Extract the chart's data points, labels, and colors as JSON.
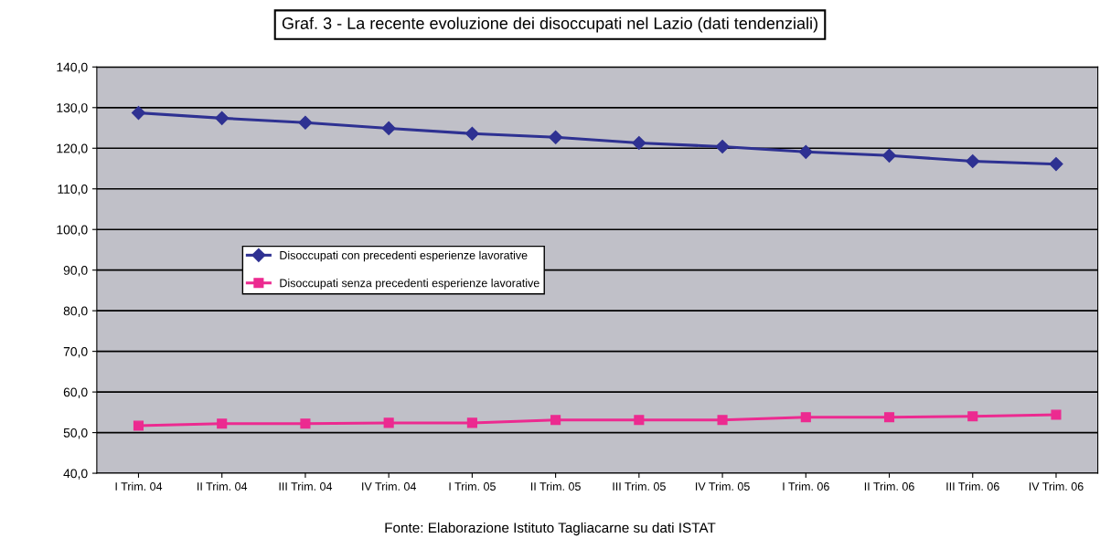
{
  "chart_data": {
    "type": "line",
    "title": "Graf. 3 - La recente evoluzione dei disoccupati nel Lazio (dati tendenziali)",
    "annotations": [
      "Fonte: Elaborazione Istituto Tagliacarne su dati ISTAT"
    ],
    "categories": [
      "I Trim. 04",
      "II Trim. 04",
      "III Trim. 04",
      "IV Trim. 04",
      "I Trim. 05",
      "II Trim. 05",
      "III Trim. 05",
      "IV Trim. 05",
      "I Trim. 06",
      "II Trim. 06",
      "III Trim. 06",
      "IV Trim. 06"
    ],
    "series": [
      {
        "name": "Disoccupati con precedenti esperienze lavorative",
        "color": "#2e3192",
        "marker": "diamond",
        "values": [
          128.7,
          127.4,
          126.3,
          124.9,
          123.6,
          122.7,
          121.3,
          120.4,
          119.1,
          118.2,
          116.8,
          116.1
        ]
      },
      {
        "name": "Disoccupati senza precedenti esperienze lavorative",
        "color": "#ec2a90",
        "marker": "square",
        "values": [
          51.7,
          52.2,
          52.2,
          52.4,
          52.4,
          53.1,
          53.1,
          53.1,
          53.8,
          53.8,
          54.0,
          54.4
        ]
      }
    ],
    "ylim": [
      40,
      140
    ],
    "yticks": [
      {
        "value": 40,
        "label": "40,0"
      },
      {
        "value": 50,
        "label": "50,0"
      },
      {
        "value": 60,
        "label": "60,0"
      },
      {
        "value": 70,
        "label": "70,0"
      },
      {
        "value": 80,
        "label": "80,0"
      },
      {
        "value": 90,
        "label": "90,0"
      },
      {
        "value": 100,
        "label": "100,0"
      },
      {
        "value": 110,
        "label": "110,0"
      },
      {
        "value": 120,
        "label": "120,0"
      },
      {
        "value": 130,
        "label": "130,0"
      },
      {
        "value": 140,
        "label": "140,0"
      }
    ],
    "grid": "y",
    "legend": "center left",
    "line_style": "solid"
  }
}
